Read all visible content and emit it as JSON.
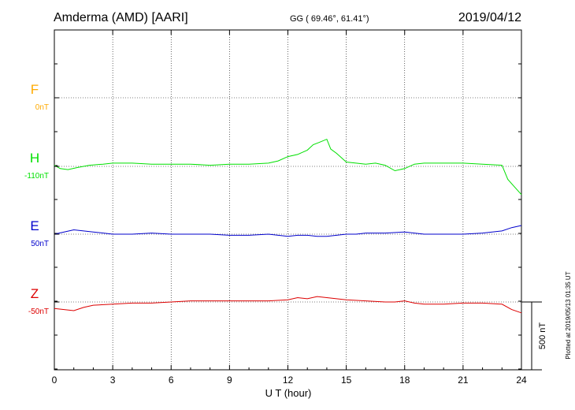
{
  "header": {
    "station": "Amderma (AMD)  [AARI]",
    "coords": "GG ( 69.46°,  61.41°)",
    "date": "2019/04/12"
  },
  "footer": {
    "plotted": "Plotted at 2019/05/13 01:35 UT"
  },
  "colors": {
    "F": "#ffaa00",
    "H": "#00e000",
    "E": "#0000cc",
    "Z": "#dd0000",
    "axis": "#000000"
  },
  "chart_data": {
    "type": "line",
    "xlabel": "U T (hour)",
    "xlim": [
      0,
      24
    ],
    "xticks": [
      "0",
      "3",
      "6",
      "9",
      "12",
      "15",
      "18",
      "21",
      "24"
    ],
    "grid": true,
    "scale_bar_label": "500 nT",
    "series": [
      {
        "name": "F",
        "baseline_label": "0nT",
        "color": "#ffaa00",
        "x": [],
        "y": []
      },
      {
        "name": "H",
        "baseline_label": "-110nT",
        "color": "#00e000",
        "x": [
          0,
          0.3,
          0.7,
          1.2,
          1.8,
          2.5,
          3,
          4,
          5,
          6,
          7,
          8,
          9,
          10,
          11,
          11.5,
          12,
          12.5,
          13,
          13.3,
          13.6,
          14,
          14.2,
          14.5,
          15,
          15.5,
          16,
          16.5,
          17,
          17.5,
          18,
          18.5,
          19,
          20,
          21,
          22,
          23,
          23.3,
          23.6,
          24
        ],
        "y": [
          5,
          -10,
          -15,
          -5,
          5,
          10,
          15,
          15,
          10,
          10,
          10,
          5,
          10,
          10,
          15,
          25,
          45,
          55,
          75,
          100,
          110,
          125,
          80,
          60,
          20,
          15,
          10,
          15,
          5,
          -20,
          -10,
          10,
          15,
          15,
          15,
          10,
          5,
          -60,
          -90,
          -130
        ]
      },
      {
        "name": "E",
        "baseline_label": "50nT",
        "color": "#0000cc",
        "x": [
          0,
          0.5,
          1,
          1.5,
          2,
          3,
          4,
          5,
          6,
          7,
          8,
          9,
          10,
          11,
          12,
          12.5,
          13,
          13.5,
          14,
          14.5,
          15,
          15.5,
          16,
          17,
          18,
          18.5,
          19,
          20,
          21,
          22,
          23,
          23.5,
          24
        ],
        "y": [
          0,
          10,
          20,
          15,
          10,
          0,
          0,
          5,
          0,
          0,
          0,
          -5,
          -5,
          0,
          -10,
          -5,
          -5,
          -10,
          -10,
          -5,
          0,
          0,
          5,
          5,
          10,
          5,
          0,
          0,
          0,
          5,
          15,
          30,
          40
        ]
      },
      {
        "name": "Z",
        "baseline_label": "-50nT",
        "color": "#dd0000",
        "x": [
          0,
          0.5,
          1,
          1.5,
          2,
          3,
          4,
          5,
          6,
          7,
          8,
          9,
          10,
          11,
          12,
          12.5,
          13,
          13.5,
          14,
          14.5,
          15,
          16,
          17,
          17.5,
          18,
          18.5,
          19,
          20,
          21,
          22,
          23,
          23.5,
          24
        ],
        "y": [
          -30,
          -35,
          -40,
          -25,
          -15,
          -10,
          -5,
          -5,
          0,
          5,
          5,
          5,
          5,
          5,
          10,
          20,
          15,
          25,
          20,
          15,
          10,
          5,
          0,
          0,
          5,
          -5,
          -10,
          -10,
          -5,
          -5,
          -10,
          -35,
          -50
        ]
      }
    ]
  }
}
